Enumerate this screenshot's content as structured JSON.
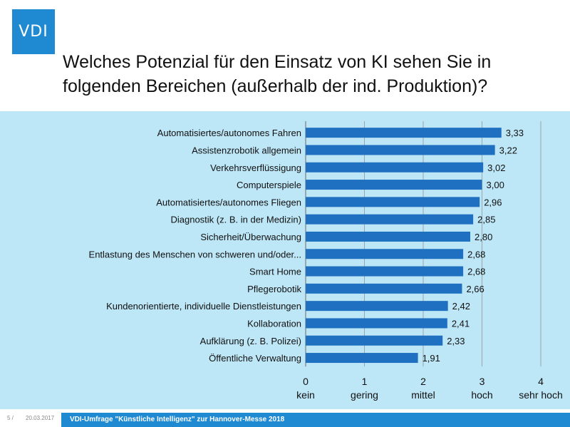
{
  "logo": {
    "text": "VDI"
  },
  "title": "Welches Potenzial für den Einsatz von KI sehen Sie in folgenden Bereichen (außerhalb der ind. Produktion)?",
  "footer": {
    "page": "5 /",
    "date": "20.03.2017",
    "text": "VDI-Umfrage \"Künstliche Intelligenz\" zur Hannover-Messe 2018"
  },
  "colors": {
    "bar": "#1f70c1",
    "panel": "#bde6f6",
    "accent": "#1f8ad2"
  },
  "chart_data": {
    "type": "bar",
    "orientation": "horizontal",
    "categories": [
      "Automatisiertes/autonomes Fahren",
      "Assistenzrobotik allgemein",
      "Verkehrsverflüssigung",
      "Computerspiele",
      "Automatisiertes/autonomes Fliegen",
      "Diagnostik (z. B. in der Medizin)",
      "Sicherheit/Überwachung",
      "Entlastung des Menschen von schweren und/oder...",
      "Smart Home",
      "Pflegerobotik",
      "Kundenorientierte, individuelle Dienstleistungen",
      "Kollaboration",
      "Aufklärung (z. B. Polizei)",
      "Öffentliche Verwaltung"
    ],
    "values": [
      3.33,
      3.22,
      3.02,
      3.0,
      2.96,
      2.85,
      2.8,
      2.68,
      2.68,
      2.66,
      2.42,
      2.41,
      2.33,
      1.91
    ],
    "value_labels": [
      "3,33",
      "3,22",
      "3,02",
      "3,00",
      "2,96",
      "2,85",
      "2,80",
      "2,68",
      "2,68",
      "2,66",
      "2,42",
      "2,41",
      "2,33",
      "1,91"
    ],
    "xlim": [
      0,
      4
    ],
    "x_ticks": [
      {
        "value": 0,
        "label": "0",
        "sublabel": "kein"
      },
      {
        "value": 1,
        "label": "1",
        "sublabel": "gering"
      },
      {
        "value": 2,
        "label": "2",
        "sublabel": "mittel"
      },
      {
        "value": 3,
        "label": "3",
        "sublabel": "hoch"
      },
      {
        "value": 4,
        "label": "4",
        "sublabel": "sehr hoch"
      }
    ],
    "grid": true
  }
}
